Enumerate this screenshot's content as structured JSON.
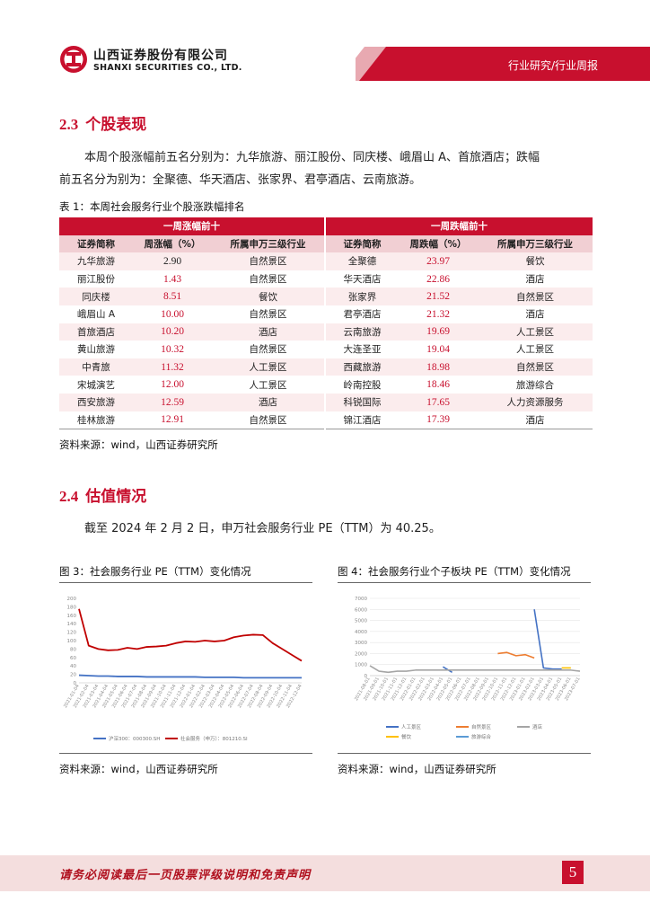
{
  "header": {
    "company_cn": "山西证券股份有限公司",
    "company_en": "SHANXI SECURITIES CO., LTD.",
    "report_type": "行业研究/行业周报"
  },
  "section_2_3": {
    "number": "2.3",
    "title": "个股表现",
    "para_line1": "本周个股涨幅前五名分别为：九华旅游、丽江股份、同庆楼、峨眉山 A、首旅酒店；跌幅",
    "para_line2": "前五名分为别为：全聚德、华天酒店、张家界、君亭酒店、云南旅游。"
  },
  "table": {
    "caption": "表 1：本周社会服务行业个股涨跌幅排名",
    "group_up": "一周涨幅前十",
    "group_down": "一周跌幅前十",
    "col_code": "证券简称",
    "col_up": "周涨幅（%）",
    "col_down": "周跌幅（%）",
    "col_industry": "所属申万三级行业",
    "up_rows": [
      {
        "name": "九华旅游",
        "value": "2.90",
        "industry": "自然景区"
      },
      {
        "name": "丽江股份",
        "value": "1.43",
        "industry": "自然景区"
      },
      {
        "name": "同庆楼",
        "value": "8.51",
        "industry": "餐饮"
      },
      {
        "name": "峨眉山 A",
        "value": "10.00",
        "industry": "自然景区"
      },
      {
        "name": "首旅酒店",
        "value": "10.20",
        "industry": "酒店"
      },
      {
        "name": "黄山旅游",
        "value": "10.32",
        "industry": "自然景区"
      },
      {
        "name": "中青旅",
        "value": "11.32",
        "industry": "人工景区"
      },
      {
        "name": "宋城演艺",
        "value": "12.00",
        "industry": "人工景区"
      },
      {
        "name": "西安旅游",
        "value": "12.59",
        "industry": "酒店"
      },
      {
        "name": "桂林旅游",
        "value": "12.91",
        "industry": "自然景区"
      }
    ],
    "down_rows": [
      {
        "name": "全聚德",
        "value": "23.97",
        "industry": "餐饮"
      },
      {
        "name": "华天酒店",
        "value": "22.86",
        "industry": "酒店"
      },
      {
        "name": "张家界",
        "value": "21.52",
        "industry": "自然景区"
      },
      {
        "name": "君亭酒店",
        "value": "21.32",
        "industry": "酒店"
      },
      {
        "name": "云南旅游",
        "value": "19.69",
        "industry": "人工景区"
      },
      {
        "name": "大连圣亚",
        "value": "19.04",
        "industry": "人工景区"
      },
      {
        "name": "西藏旅游",
        "value": "18.98",
        "industry": "自然景区"
      },
      {
        "name": "岭南控股",
        "value": "18.46",
        "industry": "旅游综合"
      },
      {
        "name": "科锐国际",
        "value": "17.65",
        "industry": "人力资源服务"
      },
      {
        "name": "锦江酒店",
        "value": "17.39",
        "industry": "酒店"
      }
    ],
    "source": "资料来源：wind，山西证券研究所"
  },
  "section_2_4": {
    "number": "2.4",
    "title": "估值情况",
    "para": "截至 2024 年 2 月 2 日，申万社会服务行业 PE（TTM）为 40.25。"
  },
  "figures": {
    "fig3_caption": "图 3：社会服务行业 PE（TTM）变化情况",
    "fig4_caption": "图 4：社会服务行业个子板块 PE（TTM）变化情况",
    "fig3_source": "资料来源：wind，山西证券研究所",
    "fig4_source": "资料来源：wind，山西证券研究所"
  },
  "chart_data": [
    {
      "type": "line",
      "y_ticks": [
        "200",
        "180",
        "160",
        "140",
        "120",
        "100",
        "80",
        "60",
        "40",
        "20",
        "0"
      ],
      "ylim": [
        0,
        200
      ],
      "x_ticks": [
        "2021-01-04",
        "2021-02-04",
        "2021-03-04",
        "2021-04-04",
        "2021-05-04",
        "2021-06-04",
        "2021-07-04",
        "2021-08-04",
        "2021-09-04",
        "2021-10-04",
        "2021-11-04",
        "2021-12-04",
        "2022-01-04",
        "2022-02-04",
        "2022-03-04",
        "2022-04-04",
        "2022-05-04",
        "2022-06-04",
        "2022-07-04",
        "2022-08-04",
        "2022-09-04",
        "2022-10-04",
        "2022-11-04",
        "2022-12-04"
      ],
      "series": [
        {
          "name": "沪深300：000300.SH",
          "color": "#4472c4",
          "values": [
            18,
            17,
            16,
            16,
            15,
            15,
            15,
            14,
            14,
            14,
            14,
            14,
            14,
            13,
            13,
            13,
            13,
            12,
            12,
            12,
            12,
            12,
            12,
            12
          ]
        },
        {
          "name": "社会服务（申万）：801210.SI",
          "color": "#c00000",
          "values": [
            175,
            88,
            80,
            77,
            78,
            83,
            80,
            85,
            86,
            88,
            94,
            98,
            97,
            100,
            98,
            100,
            108,
            112,
            114,
            113,
            94,
            80,
            66,
            52
          ]
        }
      ],
      "legend_position": "bottom"
    },
    {
      "type": "line",
      "y_ticks": [
        "7000",
        "6000",
        "5000",
        "4000",
        "3000",
        "2000",
        "1000",
        "0"
      ],
      "ylim": [
        0,
        7000
      ],
      "x_ticks": [
        "2021-08-01",
        "2021-09-01",
        "2021-10-01",
        "2021-11-01",
        "2021-12-01",
        "2022-01-01",
        "2022-02-01",
        "2022-03-01",
        "2022-04-01",
        "2022-05-01",
        "2022-06-01",
        "2022-07-01",
        "2022-08-01",
        "2022-09-01",
        "2022-10-01",
        "2022-11-01",
        "2022-12-01",
        "2023-01-01",
        "2023-02-01",
        "2023-03-01",
        "2023-04-01",
        "2023-05-01",
        "2023-06-01",
        "2023-07-01"
      ],
      "series": [
        {
          "name": "人工景区",
          "color": "#4472c4",
          "values": [
            null,
            null,
            null,
            null,
            null,
            null,
            null,
            null,
            800,
            300,
            null,
            null,
            null,
            null,
            null,
            null,
            null,
            null,
            6000,
            700,
            600,
            600,
            null,
            null
          ]
        },
        {
          "name": "自然景区",
          "color": "#ed7d31",
          "values": [
            null,
            null,
            null,
            null,
            null,
            null,
            null,
            null,
            null,
            null,
            null,
            null,
            null,
            null,
            2000,
            2100,
            1800,
            1900,
            1600,
            null,
            null,
            null,
            null,
            null
          ]
        },
        {
          "name": "酒店",
          "color": "#a5a5a5",
          "values": [
            900,
            400,
            300,
            400,
            400,
            500,
            500,
            500,
            500,
            500,
            500,
            500,
            500,
            500,
            500,
            500,
            500,
            500,
            500,
            500,
            500,
            500,
            500,
            400
          ]
        },
        {
          "name": "餐饮",
          "color": "#ffc000",
          "values": [
            null,
            null,
            null,
            null,
            null,
            null,
            null,
            null,
            null,
            null,
            null,
            null,
            null,
            null,
            null,
            null,
            null,
            null,
            null,
            null,
            null,
            700,
            700,
            null
          ]
        },
        {
          "name": "旅游综合",
          "color": "#5b9bd5",
          "values": [
            null,
            null,
            null,
            null,
            null,
            null,
            null,
            null,
            null,
            null,
            null,
            null,
            null,
            null,
            null,
            null,
            null,
            null,
            null,
            null,
            null,
            null,
            null,
            null
          ]
        }
      ],
      "legend_position": "bottom"
    }
  ],
  "footer": {
    "disclaimer": "请务必阅读最后一页股票评级说明和免责声明",
    "page": "5"
  }
}
